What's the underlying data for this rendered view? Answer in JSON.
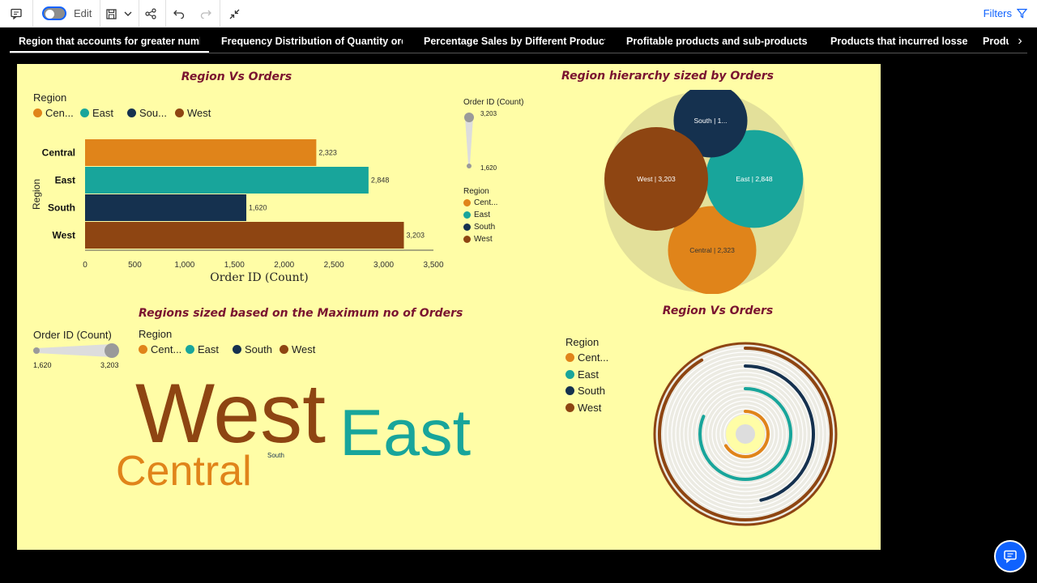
{
  "toolbar": {
    "edit_label": "Edit",
    "filters_label": "Filters"
  },
  "tabs": [
    {
      "label": "Region that accounts for greater number of"
    },
    {
      "label": "Frequency Distribution of Quantity ordered"
    },
    {
      "label": "Percentage Sales by Different Product cat"
    },
    {
      "label": "Profitable products and sub-products in la"
    },
    {
      "label": "Products that incurred losses"
    },
    {
      "label": "Produ"
    }
  ],
  "colors": {
    "central": "#e0841a",
    "east": "#18a59b",
    "south": "#15314f",
    "west": "#8e4512",
    "canvas": "#fffda6",
    "title": "#7a1330"
  },
  "bar_panel": {
    "title": "Region Vs Orders",
    "legend_title": "Region",
    "legend": [
      "Cen...",
      "East",
      "Sou...",
      "West"
    ],
    "ylabel": "Region",
    "xlabel": "Order ID (Count)"
  },
  "bubble_panel": {
    "title": "Region hierarchy sized by Orders",
    "size_legend_title": "Order ID (Count)",
    "size_max": "3,203",
    "size_min": "1,620",
    "legend_title": "Region",
    "legend": [
      "Cent...",
      "East",
      "South",
      "West"
    ],
    "bubbles": [
      "South | 1...",
      "West | 3,203",
      "East | 2,848",
      "Central | 2,323"
    ]
  },
  "cloud_panel": {
    "title": "Regions sized based on the Maximum no of Orders",
    "size_legend_title": "Order ID (Count)",
    "size_min": "1,620",
    "size_max": "3,203",
    "legend_title": "Region",
    "legend": [
      "Cent...",
      "East",
      "South",
      "West"
    ],
    "words": [
      "West",
      "East",
      "Central",
      "South"
    ]
  },
  "radial_panel": {
    "title": "Region Vs Orders",
    "legend_title": "Region",
    "legend": [
      "Cent...",
      "East",
      "South",
      "West"
    ]
  },
  "chart_data": [
    {
      "type": "bar",
      "title": "Region Vs Orders",
      "orientation": "horizontal",
      "categories": [
        "Central",
        "East",
        "South",
        "West"
      ],
      "values": [
        2323,
        2848,
        1620,
        3203
      ],
      "value_labels": [
        "2,323",
        "2,848",
        "1,620",
        "3,203"
      ],
      "xlabel": "Order ID (Count)",
      "ylabel": "Region",
      "xlim": [
        0,
        3500
      ],
      "xticks": [
        "0",
        "500",
        "1,000",
        "1,500",
        "2,000",
        "2,500",
        "3,000",
        "3,500"
      ],
      "legend_placement": "top-left"
    },
    {
      "type": "bubble",
      "title": "Region hierarchy sized by Orders",
      "categories": [
        "Central",
        "East",
        "South",
        "West"
      ],
      "values": [
        2323,
        2848,
        1620,
        3203
      ]
    },
    {
      "type": "wordcloud",
      "title": "Regions sized based on the Maximum no of Orders",
      "categories": [
        "Central",
        "East",
        "South",
        "West"
      ],
      "values": [
        2323,
        2848,
        1620,
        3203
      ]
    },
    {
      "type": "radial-bar",
      "title": "Region Vs Orders",
      "categories": [
        "Central",
        "East",
        "South",
        "West"
      ],
      "values": [
        2323,
        2848,
        1620,
        3203
      ],
      "max": 3500
    }
  ]
}
